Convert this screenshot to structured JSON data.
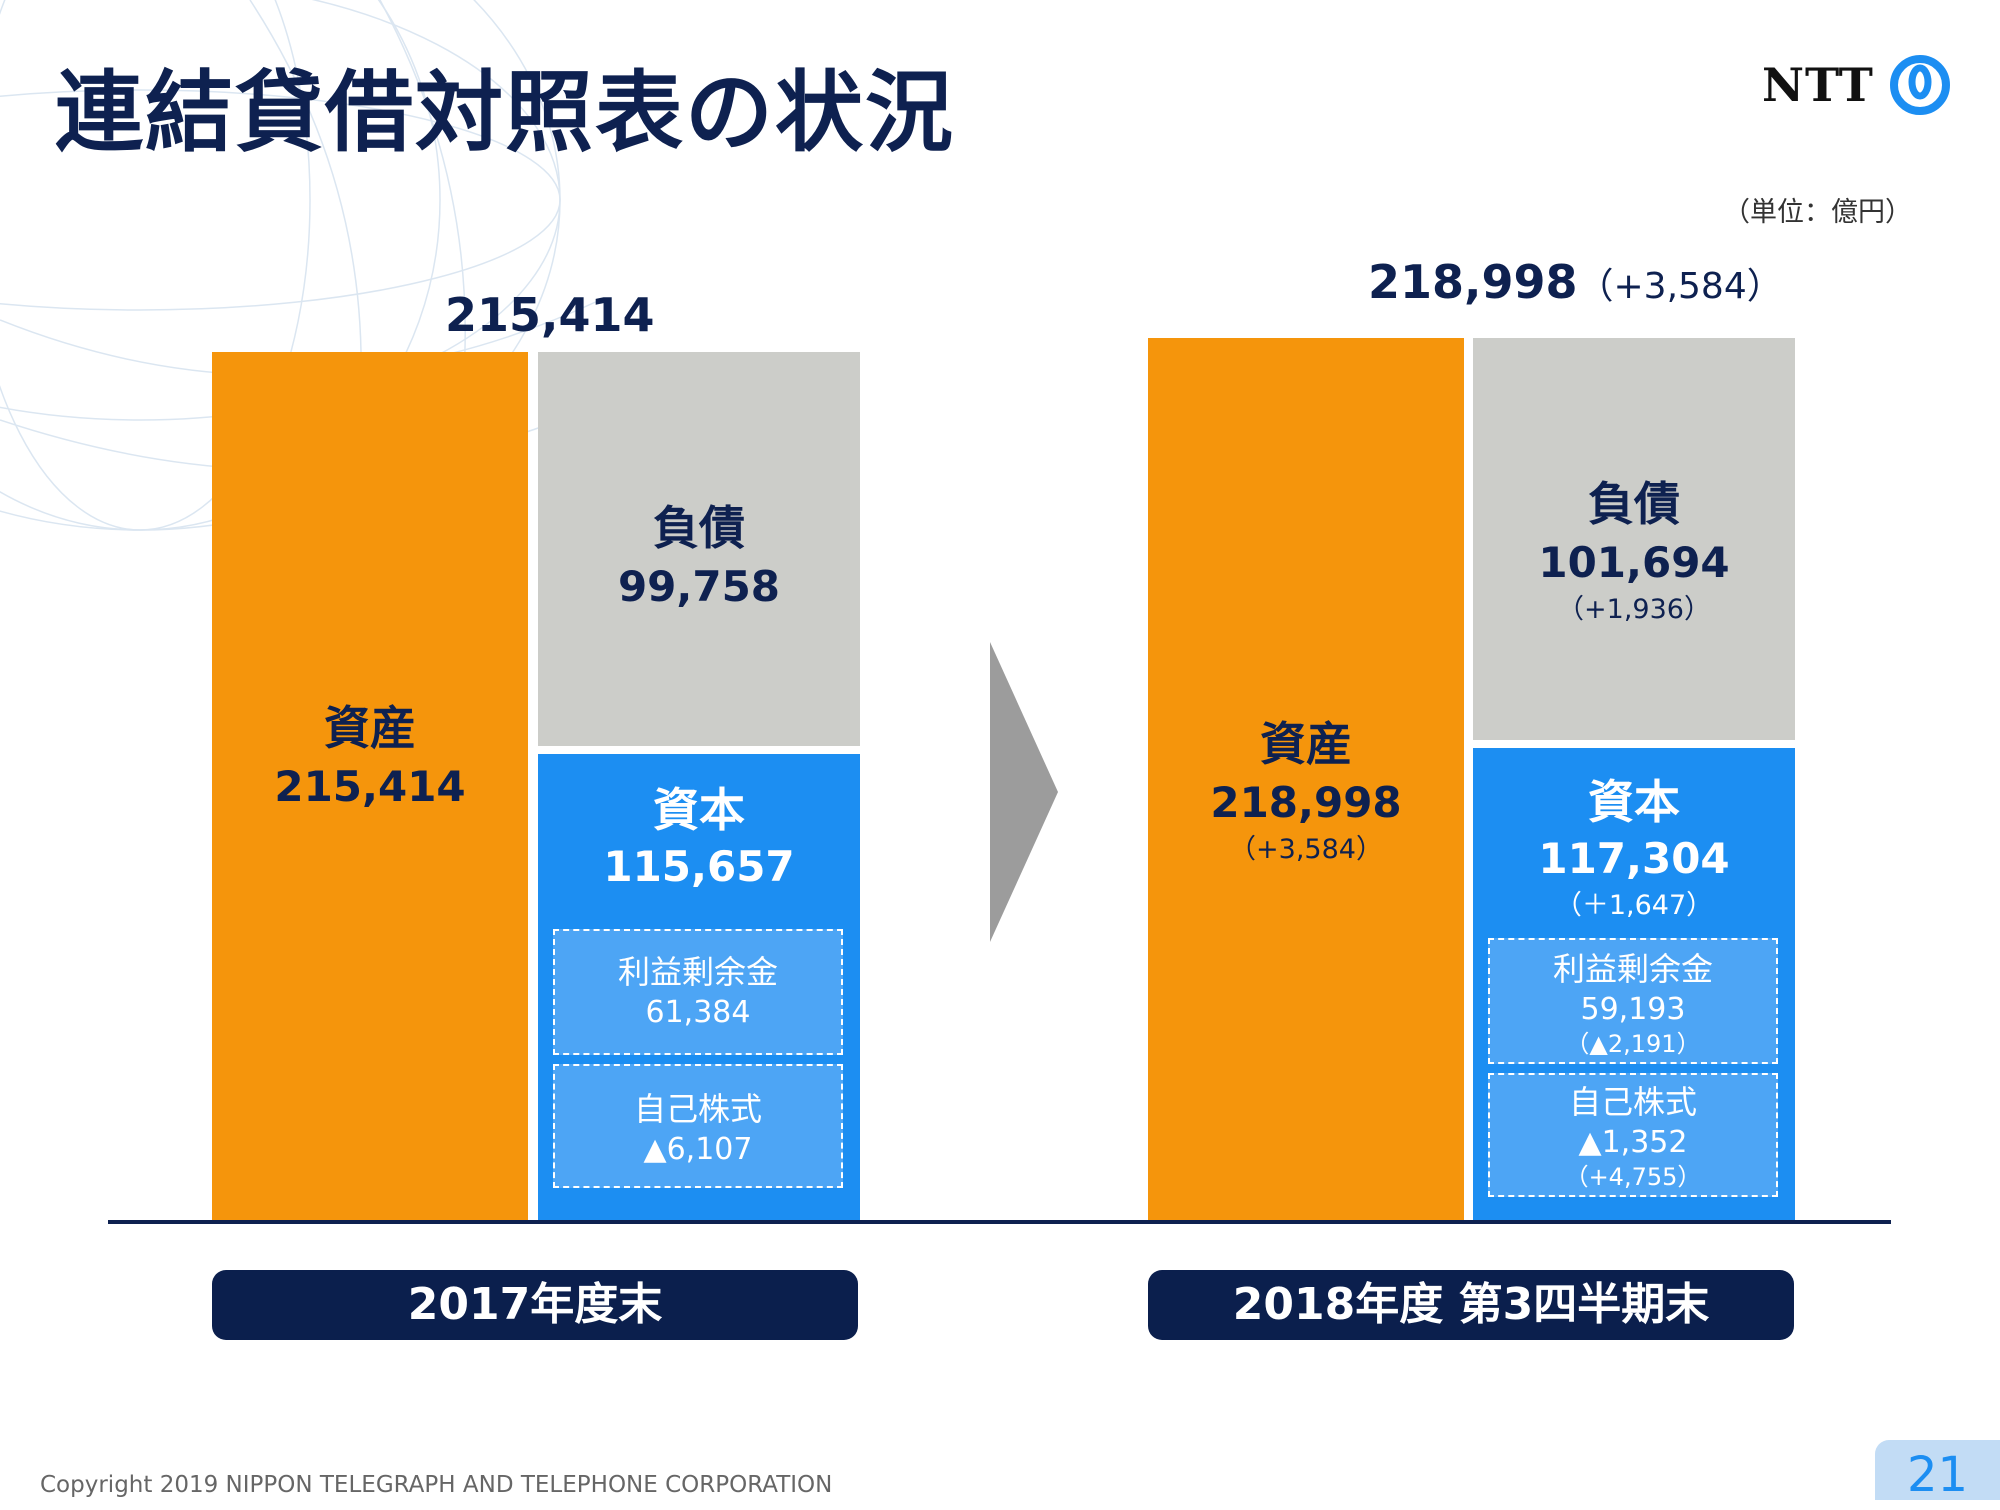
{
  "title": "連結貸借対照表の状況",
  "logo": {
    "text": "NTT",
    "icon": "ntt-logo-icon"
  },
  "unit": "（単位：億円）",
  "colors": {
    "asset": "#f5950c",
    "liabilities": "#cccdc9",
    "equity": "#1c8ef2",
    "navy": "#0e2150"
  },
  "chart_data": {
    "type": "bar",
    "categories": [
      "2017年度末",
      "2018年度 第3四半期末"
    ],
    "periods": [
      {
        "label": "2017年度末",
        "total": "215,414",
        "total_delta": "",
        "assets": {
          "name": "資産",
          "value": "215,414",
          "delta": ""
        },
        "liabilities": {
          "name": "負債",
          "value": "99,758",
          "delta": ""
        },
        "equity": {
          "name": "資本",
          "value": "115,657",
          "delta": ""
        },
        "retained_earnings": {
          "name": "利益剰余金",
          "value": "61,384",
          "delta": ""
        },
        "treasury_stock": {
          "name": "自己株式",
          "value": "▲6,107",
          "delta": ""
        }
      },
      {
        "label": "2018年度 第3四半期末",
        "total": "218,998",
        "total_delta": "（+3,584）",
        "assets": {
          "name": "資産",
          "value": "218,998",
          "delta": "（+3,584）"
        },
        "liabilities": {
          "name": "負債",
          "value": "101,694",
          "delta": "（+1,936）"
        },
        "equity": {
          "name": "資本",
          "value": "117,304",
          "delta": "（＋1,647）"
        },
        "retained_earnings": {
          "name": "利益剰余金",
          "value": "59,193",
          "delta": "（▲2,191）"
        },
        "treasury_stock": {
          "name": "自己株式",
          "value": "▲1,352",
          "delta": "（+4,755）"
        }
      }
    ],
    "values": {
      "assets": [
        215414,
        218998
      ],
      "liabilities": [
        99758,
        101694
      ],
      "equity": [
        115657,
        117304
      ]
    }
  },
  "footer": "Copyright 2019 NIPPON TELEGRAPH AND TELEPHONE CORPORATION",
  "page_number": "21"
}
